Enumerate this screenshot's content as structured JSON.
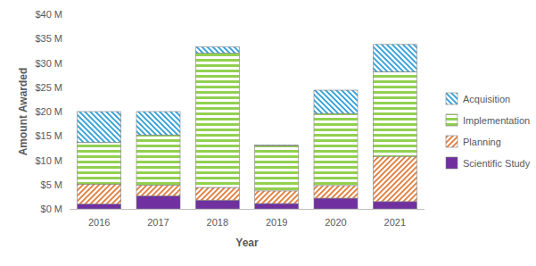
{
  "chart_data": {
    "type": "bar",
    "stacked": true,
    "grid": false,
    "legend": "right",
    "x_label": "Year",
    "y_label": "Amount Awarded",
    "categories": [
      "2016",
      "2017",
      "2018",
      "2019",
      "2020",
      "2021"
    ],
    "series": [
      {
        "name": "Scientific Study",
        "color": "#7030a0",
        "values": [
          1.0,
          2.7,
          1.8,
          1.1,
          2.2,
          1.5
        ]
      },
      {
        "name": "Planning",
        "color": "#e07b39",
        "values": [
          4.1,
          2.2,
          2.6,
          2.6,
          2.6,
          9.3
        ]
      },
      {
        "name": "Implementation",
        "color": "#92d050",
        "values": [
          8.6,
          10.3,
          27.6,
          9.3,
          14.8,
          17.4
        ]
      },
      {
        "name": "Acquisition",
        "color": "#2e9fd8",
        "values": [
          6.3,
          4.8,
          1.3,
          0.1,
          4.8,
          5.6
        ]
      }
    ],
    "ylim": [
      0,
      40
    ],
    "yticks": [
      {
        "value": 0,
        "label": "$0 M"
      },
      {
        "value": 5,
        "label": "$5 M"
      },
      {
        "value": 10,
        "label": "$10 M"
      },
      {
        "value": 15,
        "label": "$15 M"
      },
      {
        "value": 20,
        "label": "$20 M"
      },
      {
        "value": 25,
        "label": "$25 M"
      },
      {
        "value": 30,
        "label": "$30 M"
      },
      {
        "value": 35,
        "label": "$35 M"
      },
      {
        "value": 40,
        "label": "$40 M"
      }
    ]
  }
}
